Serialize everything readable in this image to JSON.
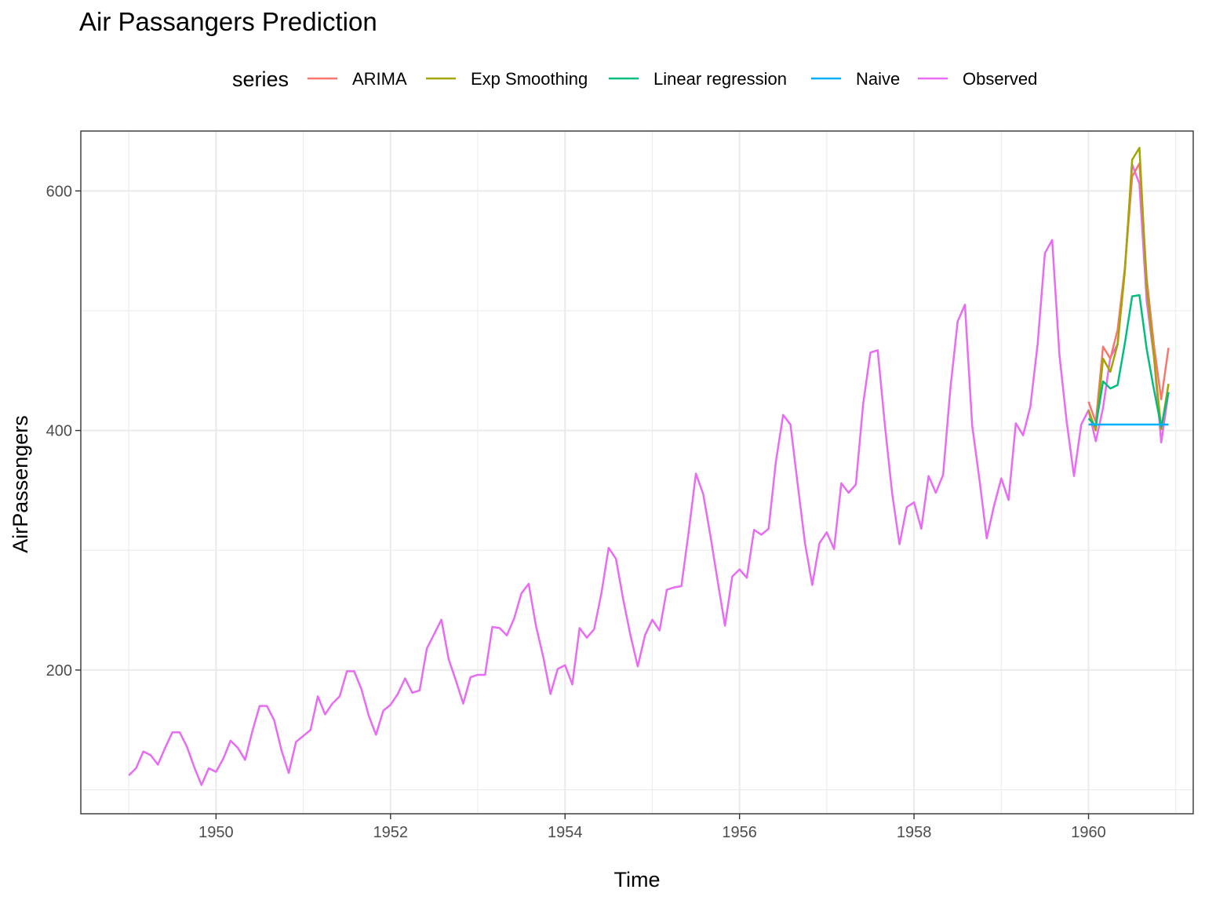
{
  "chart_data": {
    "type": "line",
    "title": "Air Passangers Prediction",
    "xlabel": "Time",
    "ylabel": "AirPassengers",
    "xlim": [
      1948.45,
      1961.2
    ],
    "ylim": [
      80,
      650
    ],
    "x_ticks": [
      1950,
      1952,
      1954,
      1956,
      1958,
      1960
    ],
    "x_minor_ticks": [
      1949,
      1951,
      1953,
      1955,
      1957,
      1959,
      1961
    ],
    "y_ticks": [
      200,
      400,
      600
    ],
    "y_minor_ticks": [
      100,
      300,
      500
    ],
    "grid": true,
    "legend": {
      "title": "series",
      "position": "top"
    },
    "series": [
      {
        "name": "ARIMA",
        "color": "#F8766D",
        "x_start": 1960.0,
        "step": 0.0833333,
        "values": [
          424,
          407,
          470,
          460,
          484,
          536,
          612,
          623,
          527,
          471,
          426,
          469
        ]
      },
      {
        "name": "Exp Smoothing",
        "color": "#A3A500",
        "x_start": 1960.0,
        "step": 0.0833333,
        "values": [
          417,
          400,
          460,
          449,
          472,
          533,
          626,
          636,
          520,
          462,
          401,
          439
        ]
      },
      {
        "name": "Linear regression",
        "color": "#00BF7D",
        "x_start": 1960.0,
        "step": 0.0833333,
        "values": [
          410,
          404,
          441,
          435,
          438,
          473,
          512,
          513,
          468,
          434,
          403,
          432
        ]
      },
      {
        "name": "Naive",
        "color": "#00B0F6",
        "x_start": 1960.0,
        "step": 0.0833333,
        "values": [
          405,
          405,
          405,
          405,
          405,
          405,
          405,
          405,
          405,
          405,
          405,
          405
        ]
      },
      {
        "name": "Observed",
        "color": "#E76BF3",
        "x_start": 1949.0,
        "step": 0.0833333,
        "values": [
          112,
          118,
          132,
          129,
          121,
          135,
          148,
          148,
          136,
          119,
          104,
          118,
          115,
          126,
          141,
          135,
          125,
          149,
          170,
          170,
          158,
          133,
          114,
          140,
          145,
          150,
          178,
          163,
          172,
          178,
          199,
          199,
          184,
          162,
          146,
          166,
          171,
          180,
          193,
          181,
          183,
          218,
          230,
          242,
          209,
          191,
          172,
          194,
          196,
          196,
          236,
          235,
          229,
          243,
          264,
          272,
          237,
          211,
          180,
          201,
          204,
          188,
          235,
          227,
          234,
          264,
          302,
          293,
          259,
          229,
          203,
          229,
          242,
          233,
          267,
          269,
          270,
          315,
          364,
          347,
          312,
          274,
          237,
          278,
          284,
          277,
          317,
          313,
          318,
          374,
          413,
          405,
          355,
          306,
          271,
          306,
          315,
          301,
          356,
          348,
          355,
          422,
          465,
          467,
          404,
          347,
          305,
          336,
          340,
          318,
          362,
          348,
          363,
          435,
          491,
          505,
          404,
          359,
          310,
          337,
          360,
          342,
          406,
          396,
          420,
          472,
          548,
          559,
          463,
          407,
          362,
          405,
          417,
          391,
          419,
          461,
          472,
          535,
          622,
          606,
          508,
          461,
          390,
          432
        ]
      }
    ]
  }
}
